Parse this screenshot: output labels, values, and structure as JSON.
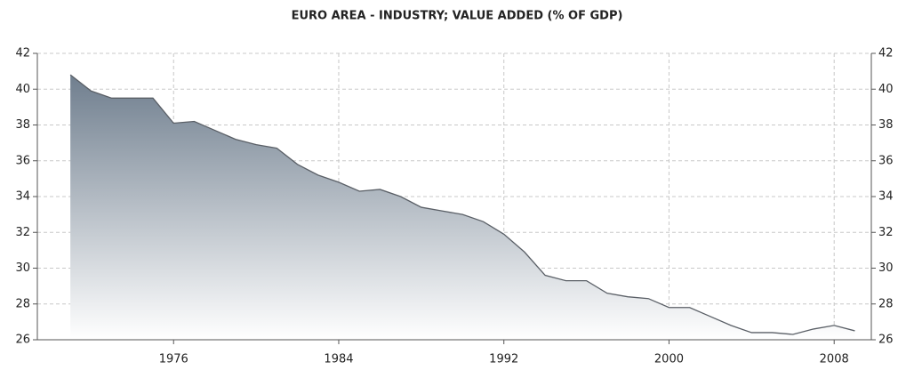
{
  "chart_data": {
    "type": "area",
    "title": "EURO AREA - INDUSTRY; VALUE ADDED (% OF GDP)",
    "x": [
      1971,
      1972,
      1973,
      1974,
      1975,
      1976,
      1977,
      1978,
      1979,
      1980,
      1981,
      1982,
      1983,
      1984,
      1985,
      1986,
      1987,
      1988,
      1989,
      1990,
      1991,
      1992,
      1993,
      1994,
      1995,
      1996,
      1997,
      1998,
      1999,
      2000,
      2001,
      2002,
      2003,
      2004,
      2005,
      2006,
      2007,
      2008,
      2009
    ],
    "values": [
      40.8,
      39.9,
      39.5,
      39.5,
      39.5,
      38.1,
      38.2,
      37.7,
      37.2,
      36.9,
      36.7,
      35.8,
      35.2,
      34.8,
      34.3,
      34.4,
      34.0,
      33.4,
      33.2,
      33.0,
      32.6,
      31.9,
      30.9,
      29.6,
      29.3,
      29.3,
      28.6,
      28.4,
      28.3,
      27.8,
      27.8,
      27.3,
      26.8,
      26.4,
      26.4,
      26.3,
      26.6,
      26.8,
      26.5
    ],
    "color": "#6f7e8e",
    "xlim": [
      1969.4,
      2009.8
    ],
    "xticks": [
      1976,
      1984,
      1992,
      2000,
      2008
    ],
    "ylim": [
      26,
      42
    ],
    "yticks": [
      26,
      28,
      30,
      32,
      34,
      36,
      38,
      40,
      42
    ],
    "grid": true
  }
}
